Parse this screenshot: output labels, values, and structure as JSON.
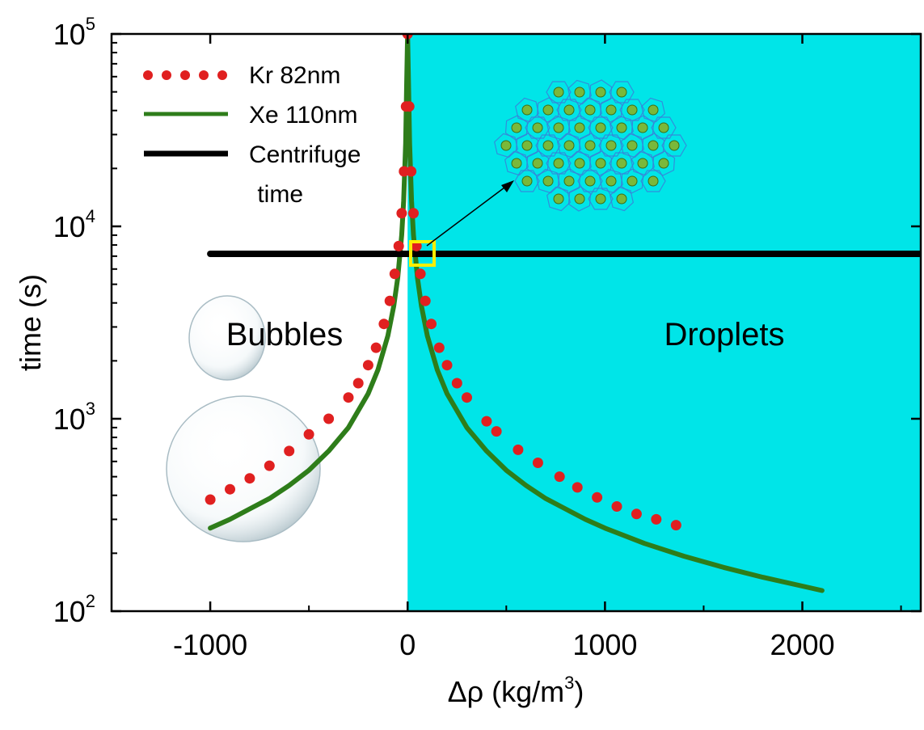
{
  "chart_data": {
    "type": "line",
    "xlabel": "Δρ (kg/m",
    "xlabel_sup": "3",
    "xlabel_close": ")",
    "ylabel": "time (s)",
    "xlim": [
      -1500,
      2600
    ],
    "ylim": [
      100,
      100000
    ],
    "yscale": "log",
    "x_ticks": [
      -1000,
      0,
      1000,
      2000
    ],
    "x_tick_labels": [
      "-1000",
      "0",
      "1000",
      "2000"
    ],
    "y_ticks": [
      100,
      1000,
      10000,
      100000
    ],
    "y_tick_labels": [
      {
        "base": "10",
        "exp": "2"
      },
      {
        "base": "10",
        "exp": "3"
      },
      {
        "base": "10",
        "exp": "4"
      },
      {
        "base": "10",
        "exp": "5"
      }
    ],
    "grid": false,
    "legend_position": "top-left",
    "regions": [
      {
        "label": "Bubbles",
        "x_range": [
          -1500,
          0
        ],
        "color": "#ffffff"
      },
      {
        "label": "Droplets",
        "x_range": [
          0,
          2600
        ],
        "color": "#00e5e8"
      }
    ],
    "series": [
      {
        "name": "Kr 82nm",
        "style": "dotted",
        "color": "#e02020",
        "x": [
          -1000,
          -900,
          -800,
          -700,
          -600,
          -500,
          -400,
          -300,
          -250,
          -200,
          -160,
          -120,
          -90,
          -65,
          -45,
          -30,
          -18,
          -8,
          0,
          8,
          18,
          30,
          45,
          65,
          90,
          120,
          160,
          200,
          250,
          300,
          400,
          450,
          560,
          660,
          770,
          860,
          960,
          1060,
          1160,
          1260,
          1360
        ],
        "y": [
          380,
          430,
          490,
          570,
          680,
          830,
          1000,
          1290,
          1530,
          1900,
          2340,
          3110,
          4100,
          5660,
          7900,
          11700,
          19300,
          42000,
          100000,
          42000,
          19300,
          11700,
          7900,
          5660,
          4100,
          3110,
          2340,
          1900,
          1530,
          1290,
          970,
          860,
          690,
          590,
          500,
          440,
          390,
          350,
          320,
          300,
          280
        ]
      },
      {
        "name": "Xe 110nm",
        "style": "solid",
        "color": "#2e7d1a",
        "x": [
          -1000,
          -900,
          -800,
          -700,
          -600,
          -500,
          -400,
          -300,
          -200,
          -150,
          -100,
          -70,
          -50,
          -30,
          -20,
          -10,
          -5,
          0,
          5,
          10,
          20,
          30,
          50,
          70,
          100,
          150,
          200,
          300,
          400,
          500,
          600,
          700,
          800,
          900,
          1000,
          1200,
          1400,
          1600,
          1800,
          2000,
          2100
        ],
        "y": [
          270,
          300,
          340,
          385,
          450,
          540,
          680,
          900,
          1350,
          1800,
          2700,
          3860,
          5400,
          9000,
          13500,
          27000,
          54000,
          100000,
          54000,
          27000,
          13500,
          9000,
          5400,
          3860,
          2700,
          1800,
          1350,
          900,
          680,
          540,
          450,
          385,
          340,
          300,
          270,
          225,
          193,
          169,
          150,
          135,
          128
        ]
      },
      {
        "name": "Centrifuge time",
        "name_lines": [
          "Centrifuge",
          " time"
        ],
        "style": "solid-thick",
        "color": "#000000",
        "x": [
          -1000,
          2600
        ],
        "y": [
          7200,
          7200
        ]
      }
    ],
    "annotations": [
      "Bubbles",
      "Droplets"
    ]
  }
}
